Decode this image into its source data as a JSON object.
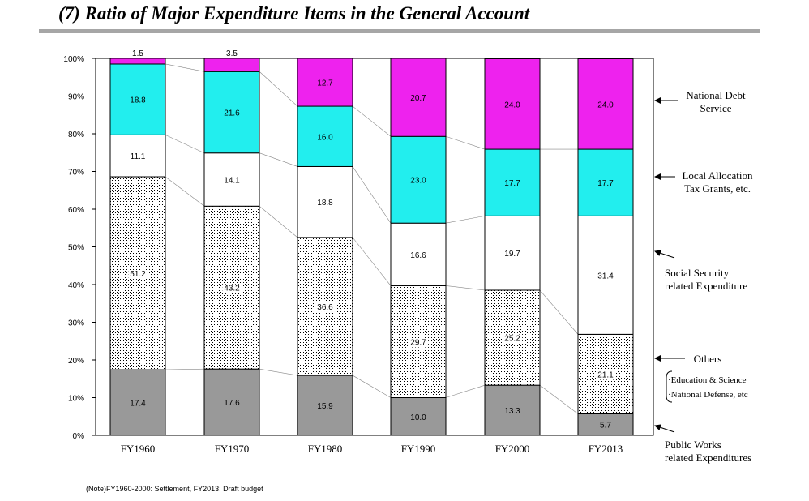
{
  "title": "(7) Ratio of Major Expenditure Items in the General Account",
  "note": "(Note)FY1960-2000: Settlement, FY2013: Draft budget",
  "colors": {
    "public_works": "#999999",
    "others": "#ffffff",
    "social_security": "#ffffff",
    "local_allocation": "#22eeee",
    "national_debt": "#ee22ee"
  },
  "chart_data": {
    "type": "bar",
    "stacked": true,
    "title": "(7) Ratio of Major Expenditure Items in the General Account",
    "xlabel": "",
    "ylabel": "",
    "ylim": [
      0,
      100
    ],
    "y_ticks": [
      "0%",
      "10%",
      "20%",
      "30%",
      "40%",
      "50%",
      "60%",
      "70%",
      "80%",
      "90%",
      "100%"
    ],
    "categories": [
      "FY1960",
      "FY1970",
      "FY1980",
      "FY1990",
      "FY2000",
      "FY2013"
    ],
    "series": [
      {
        "name": "Public Works related Expenditures",
        "key": "public_works",
        "values": [
          17.4,
          17.6,
          15.9,
          10.0,
          13.3,
          5.7
        ]
      },
      {
        "name": "Others",
        "key": "others",
        "values": [
          51.2,
          43.2,
          36.6,
          29.7,
          25.2,
          21.1
        ]
      },
      {
        "name": "Social Security related Expenditure",
        "key": "social_security",
        "values": [
          11.1,
          14.1,
          18.8,
          16.6,
          19.7,
          31.4
        ]
      },
      {
        "name": "Local Allocation Tax Grants, etc.",
        "key": "local_allocation",
        "values": [
          18.8,
          21.6,
          16.0,
          23.0,
          17.7,
          17.7
        ]
      },
      {
        "name": "National Debt Service",
        "key": "national_debt",
        "values": [
          1.5,
          3.5,
          12.7,
          20.7,
          24.0,
          24.0
        ]
      }
    ],
    "legend": [
      {
        "key": "national_debt",
        "lines": [
          "National Debt",
          "Service"
        ]
      },
      {
        "key": "local_allocation",
        "lines": [
          "Local Allocation",
          "Tax Grants, etc."
        ]
      },
      {
        "key": "social_security",
        "lines": [
          "Social Security",
          "related Expenditure"
        ]
      },
      {
        "key": "others",
        "lines": [
          "Others"
        ]
      },
      {
        "key": "public_works",
        "lines": [
          "Public Works",
          "related Expenditures"
        ]
      }
    ],
    "others_breakdown": [
      "·Education & Science",
      "·National Defense, etc"
    ]
  }
}
